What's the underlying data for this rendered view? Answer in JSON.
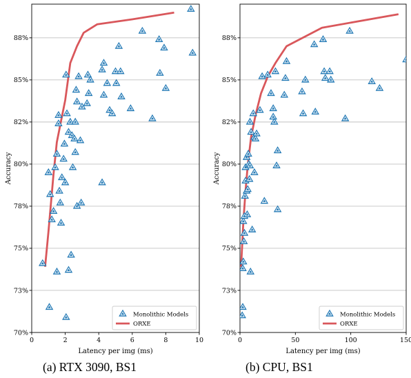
{
  "colors": {
    "monolithic": "#1f77b4",
    "orxe": "#d9575b",
    "grid": "#c0c0c0"
  },
  "chart_data": [
    {
      "type": "scatter",
      "caption": "(a) RTX 3090, BS1",
      "xlabel": "Latency per img (ms)",
      "ylabel": "Accuracy",
      "xlim": [
        0,
        10
      ],
      "ylim": [
        70,
        89.5
      ],
      "xticks": [
        "0",
        "2",
        "4",
        "6",
        "8",
        "10"
      ],
      "yticks": [
        "70%",
        "73%",
        "75%",
        "78%",
        "80%",
        "82%",
        "85%",
        "88%"
      ],
      "ytick_values": [
        70,
        72.5,
        75,
        77.5,
        80,
        82.5,
        85,
        87.5
      ],
      "grid": "y",
      "legend_position": "lower-right",
      "series": [
        {
          "name": "Monolithic Models",
          "kind": "scatter",
          "points": [
            [
              0.65,
              74.1
            ],
            [
              1.0,
              79.5
            ],
            [
              1.05,
              71.5
            ],
            [
              1.1,
              78.2
            ],
            [
              1.2,
              76.7
            ],
            [
              1.3,
              77.2
            ],
            [
              1.4,
              79.8
            ],
            [
              1.5,
              80.6
            ],
            [
              1.5,
              73.6
            ],
            [
              1.6,
              82.9
            ],
            [
              1.6,
              82.4
            ],
            [
              1.65,
              78.4
            ],
            [
              1.7,
              77.7
            ],
            [
              1.75,
              76.5
            ],
            [
              1.8,
              79.2
            ],
            [
              1.9,
              80.3
            ],
            [
              1.95,
              81.2
            ],
            [
              2.0,
              78.9
            ],
            [
              2.05,
              85.3
            ],
            [
              2.1,
              83.0
            ],
            [
              2.2,
              81.9
            ],
            [
              2.2,
              73.7
            ],
            [
              2.3,
              82.5
            ],
            [
              2.35,
              74.6
            ],
            [
              2.4,
              81.7
            ],
            [
              2.45,
              79.8
            ],
            [
              2.55,
              81.5
            ],
            [
              2.6,
              82.5
            ],
            [
              2.6,
              80.7
            ],
            [
              2.65,
              84.4
            ],
            [
              2.7,
              83.7
            ],
            [
              2.7,
              77.5
            ],
            [
              2.8,
              85.2
            ],
            [
              2.9,
              81.4
            ],
            [
              2.95,
              77.7
            ],
            [
              3.0,
              83.4
            ],
            [
              3.3,
              83.6
            ],
            [
              3.35,
              85.3
            ],
            [
              3.4,
              84.2
            ],
            [
              3.5,
              85.0
            ],
            [
              4.2,
              78.9
            ],
            [
              4.2,
              85.6
            ],
            [
              4.3,
              86.0
            ],
            [
              4.3,
              84.1
            ],
            [
              4.5,
              84.8
            ],
            [
              4.65,
              83.2
            ],
            [
              4.8,
              83.0
            ],
            [
              5.0,
              85.5
            ],
            [
              5.05,
              84.8
            ],
            [
              5.2,
              87.0
            ],
            [
              5.3,
              85.5
            ],
            [
              5.35,
              84.0
            ],
            [
              5.9,
              83.3
            ],
            [
              6.6,
              87.9
            ],
            [
              7.2,
              82.7
            ],
            [
              7.6,
              87.4
            ],
            [
              7.65,
              85.4
            ],
            [
              7.9,
              86.9
            ],
            [
              8.0,
              84.5
            ],
            [
              9.5,
              89.2
            ],
            [
              9.6,
              86.6
            ],
            [
              2.05,
              70.9
            ]
          ]
        },
        {
          "name": "ORXE",
          "kind": "line",
          "points": [
            [
              0.8,
              73.9
            ],
            [
              1.0,
              76.0
            ],
            [
              1.3,
              79.4
            ],
            [
              1.5,
              81.3
            ],
            [
              1.8,
              82.8
            ],
            [
              2.0,
              83.8
            ],
            [
              2.3,
              86.0
            ],
            [
              2.7,
              87.0
            ],
            [
              3.1,
              87.8
            ],
            [
              3.9,
              88.3
            ],
            [
              6.0,
              88.6
            ],
            [
              8.5,
              89.0
            ]
          ]
        }
      ]
    },
    {
      "type": "scatter",
      "caption": "(b) CPU, BS1",
      "xlabel": "Latency per img (ms)",
      "ylabel": "Accuracy",
      "xlim": [
        0,
        150
      ],
      "ylim": [
        70,
        89.5
      ],
      "xticks": [
        "0",
        "50",
        "100",
        "150"
      ],
      "yticks": [
        "70%",
        "73%",
        "75%",
        "78%",
        "80%",
        "82%",
        "85%",
        "88%"
      ],
      "ytick_values": [
        70,
        72.5,
        75,
        77.5,
        80,
        82.5,
        85,
        87.5
      ],
      "grid": "y",
      "legend_position": "lower-right",
      "series": [
        {
          "name": "Monolithic Models",
          "kind": "scatter",
          "points": [
            [
              2,
              71.0
            ],
            [
              2.5,
              71.5
            ],
            [
              2.5,
              73.8
            ],
            [
              3,
              74.2
            ],
            [
              3,
              76.6
            ],
            [
              3.5,
              75.4
            ],
            [
              4,
              75.9
            ],
            [
              4,
              76.9
            ],
            [
              4.5,
              78.1
            ],
            [
              5,
              79.0
            ],
            [
              5,
              79.8
            ],
            [
              6,
              80.4
            ],
            [
              6,
              78.4
            ],
            [
              6.5,
              77.0
            ],
            [
              7,
              78.5
            ],
            [
              7.5,
              80.6
            ],
            [
              8,
              80.0
            ],
            [
              8.5,
              79.1
            ],
            [
              9,
              79.9
            ],
            [
              9,
              82.5
            ],
            [
              9.5,
              73.6
            ],
            [
              10,
              81.9
            ],
            [
              11,
              76.1
            ],
            [
              12,
              83.0
            ],
            [
              13,
              81.6
            ],
            [
              13,
              79.5
            ],
            [
              14,
              81.5
            ],
            [
              15,
              81.8
            ],
            [
              18,
              83.2
            ],
            [
              20,
              85.2
            ],
            [
              22,
              77.8
            ],
            [
              25,
              85.3
            ],
            [
              28,
              84.2
            ],
            [
              30,
              82.8
            ],
            [
              30,
              83.3
            ],
            [
              31,
              82.5
            ],
            [
              32,
              85.5
            ],
            [
              33,
              79.9
            ],
            [
              34,
              80.8
            ],
            [
              34,
              77.3
            ],
            [
              40,
              84.1
            ],
            [
              41,
              85.1
            ],
            [
              42,
              86.1
            ],
            [
              56,
              84.3
            ],
            [
              57,
              83.0
            ],
            [
              59,
              85.0
            ],
            [
              67,
              87.1
            ],
            [
              68,
              83.1
            ],
            [
              75,
              87.4
            ],
            [
              76,
              85.5
            ],
            [
              77,
              85.1
            ],
            [
              81,
              85.5
            ],
            [
              82,
              85.0
            ],
            [
              95,
              82.7
            ],
            [
              99,
              87.9
            ],
            [
              119,
              84.9
            ],
            [
              126,
              84.5
            ],
            [
              150,
              86.2
            ]
          ]
        },
        {
          "name": "ORXE",
          "kind": "line",
          "points": [
            [
              1,
              73.9
            ],
            [
              3,
              76.5
            ],
            [
              5,
              78.4
            ],
            [
              7,
              79.9
            ],
            [
              10,
              81.6
            ],
            [
              14,
              82.9
            ],
            [
              19,
              84.2
            ],
            [
              25,
              85.2
            ],
            [
              32,
              86.0
            ],
            [
              42,
              87.0
            ],
            [
              74,
              88.1
            ],
            [
              143,
              88.9
            ]
          ]
        }
      ]
    }
  ]
}
